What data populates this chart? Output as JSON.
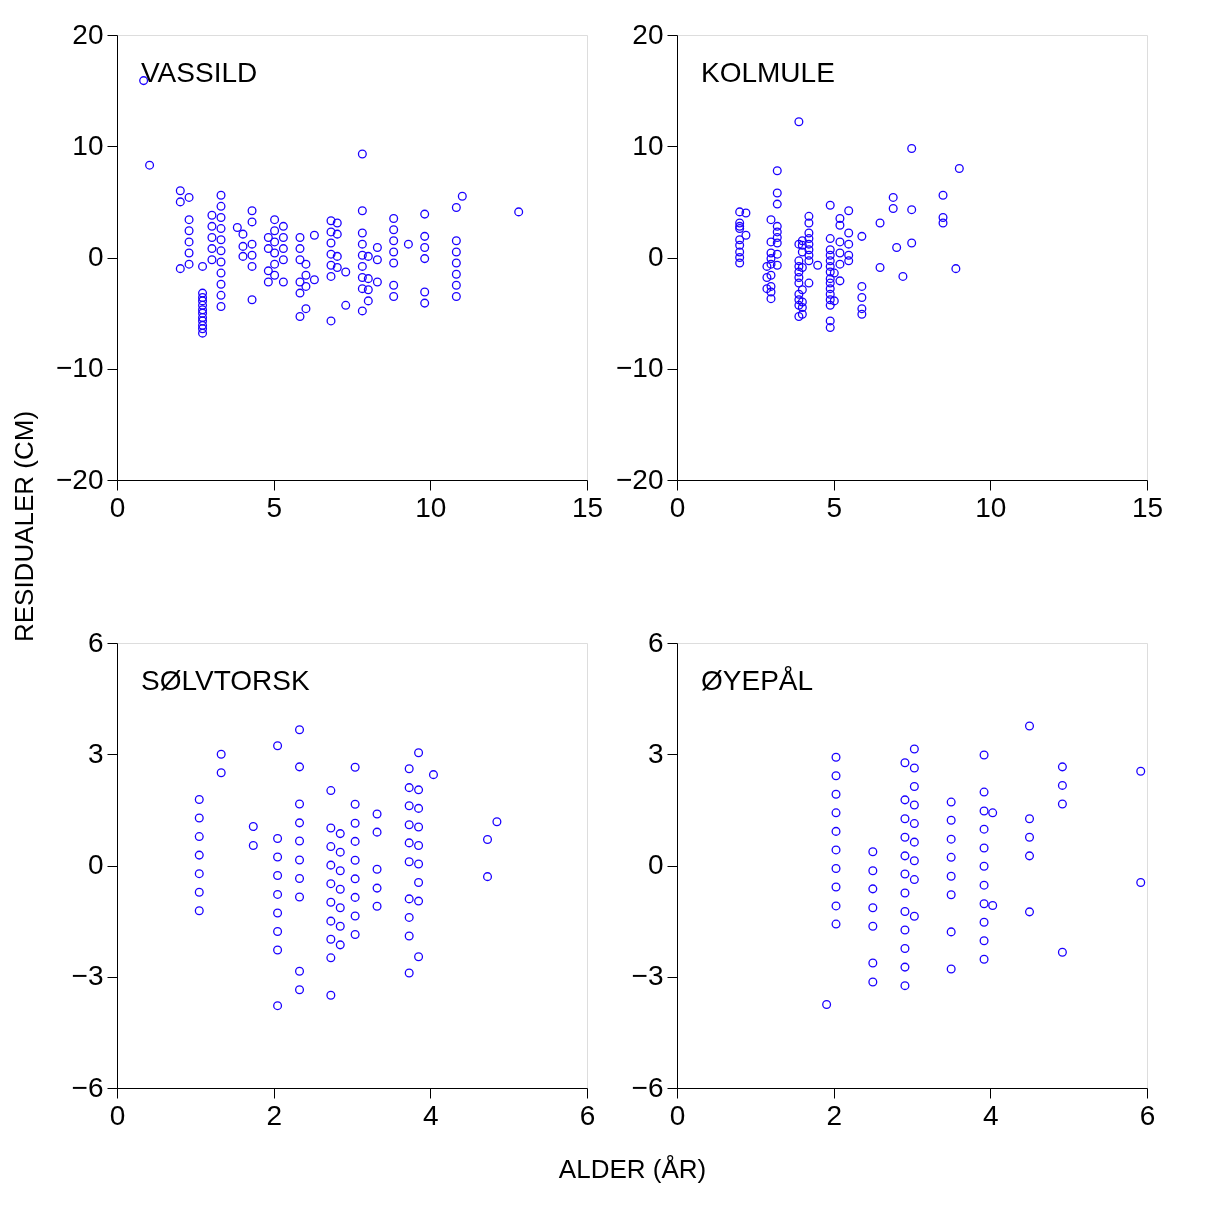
{
  "chart_data": [
    {
      "type": "scatter",
      "title": "VASSILD",
      "ylabel": "RESIDUALER (CM)",
      "marker": "circle",
      "xlim": [
        0,
        15
      ],
      "ylim": [
        -20,
        20
      ],
      "xticks": [
        0,
        5,
        10,
        15
      ],
      "yticks": [
        -20,
        -10,
        0,
        10,
        20
      ],
      "x": [
        0.85,
        1.04,
        2.02,
        2.02,
        2.02,
        2.3,
        2.3,
        2.3,
        2.3,
        2.3,
        2.3,
        2.73,
        2.73,
        2.73,
        2.73,
        2.73,
        2.73,
        2.73,
        2.73,
        2.73,
        2.73,
        2.73,
        2.73,
        3.03,
        3.03,
        3.03,
        3.03,
        3.03,
        3.32,
        3.32,
        3.32,
        3.32,
        3.32,
        3.32,
        3.32,
        3.32,
        3.32,
        3.32,
        3.32,
        3.84,
        4.02,
        4.02,
        4.02,
        4.31,
        4.31,
        4.31,
        4.31,
        4.31,
        4.31,
        4.83,
        4.83,
        4.83,
        4.83,
        5.03,
        5.03,
        5.03,
        5.03,
        5.03,
        5.03,
        5.31,
        5.31,
        5.31,
        5.31,
        5.31,
        5.84,
        5.84,
        5.84,
        5.84,
        5.84,
        5.84,
        6.03,
        6.03,
        6.03,
        6.03,
        6.3,
        6.3,
        6.83,
        6.83,
        6.83,
        6.83,
        6.83,
        6.83,
        6.83,
        7.03,
        7.03,
        7.03,
        7.03,
        7.3,
        7.3,
        7.83,
        7.83,
        7.83,
        7.83,
        7.83,
        7.83,
        7.83,
        7.83,
        7.83,
        8.02,
        8.02,
        8.02,
        8.02,
        8.31,
        8.31,
        8.31,
        8.83,
        8.83,
        8.83,
        8.83,
        8.83,
        8.83,
        8.83,
        9.3,
        9.82,
        9.82,
        9.82,
        9.82,
        9.82,
        9.82,
        10.83,
        10.83,
        10.83,
        10.83,
        10.83,
        10.83,
        10.83,
        11.02,
        12.82
      ],
      "series": [
        {
          "color": "#1a00ff",
          "values": [
            15.9,
            8.3,
            6.0,
            5.0,
            -1.0,
            5.4,
            3.4,
            2.4,
            1.4,
            0.4,
            -0.6,
            -0.8,
            -3.2,
            -3.6,
            -3.9,
            -4.3,
            -4.7,
            -5.0,
            -5.4,
            -5.7,
            -6.1,
            -6.4,
            -6.8,
            3.8,
            2.8,
            1.8,
            0.8,
            -0.2,
            5.6,
            4.6,
            3.6,
            2.6,
            1.6,
            0.6,
            -0.4,
            -1.4,
            -2.4,
            -3.4,
            -4.4,
            2.7,
            2.1,
            1.0,
            0.1,
            4.2,
            3.2,
            1.2,
            0.2,
            -0.8,
            -3.8,
            1.8,
            0.8,
            -1.2,
            -2.2,
            3.4,
            2.4,
            1.4,
            0.4,
            -0.6,
            -1.6,
            2.8,
            1.8,
            0.8,
            -0.2,
            -2.2,
            1.8,
            0.8,
            -0.2,
            -2.2,
            -3.2,
            -5.3,
            -0.6,
            -1.6,
            -2.6,
            -4.6,
            2.0,
            -2.0,
            3.3,
            2.3,
            1.3,
            0.3,
            -0.7,
            -1.7,
            -5.7,
            3.1,
            2.1,
            0.1,
            -0.9,
            -1.3,
            -4.3,
            9.3,
            4.2,
            2.2,
            1.2,
            0.2,
            -0.8,
            -1.8,
            -2.8,
            -4.8,
            0.1,
            -1.9,
            -2.9,
            -3.9,
            0.9,
            -0.2,
            -2.2,
            3.5,
            2.5,
            1.5,
            0.5,
            -0.5,
            -2.5,
            -3.5,
            1.2,
            3.9,
            1.9,
            0.9,
            -0.1,
            -3.1,
            -4.1,
            4.5,
            1.5,
            0.5,
            -0.5,
            -1.5,
            -2.5,
            -3.5,
            5.5,
            4.1
          ]
        }
      ]
    },
    {
      "type": "scatter",
      "title": "KOLMULE",
      "marker": "circle",
      "xlim": [
        0,
        15
      ],
      "ylim": [
        -20,
        20
      ],
      "xticks": [
        0,
        5,
        10,
        15
      ],
      "yticks": [
        -20,
        -10,
        0,
        10,
        20
      ],
      "x": [
        2.0,
        2.0,
        2.0,
        2.0,
        2.0,
        2.0,
        2.0,
        2.0,
        2.0,
        2.2,
        2.2,
        2.87,
        2.87,
        2.87,
        3.0,
        3.0,
        3.0,
        3.0,
        3.0,
        3.0,
        3.0,
        3.0,
        3.0,
        3.2,
        3.2,
        3.2,
        3.2,
        3.2,
        3.2,
        3.2,
        3.2,
        3.2,
        3.89,
        3.89,
        3.89,
        3.89,
        3.89,
        3.89,
        3.89,
        3.89,
        3.89,
        3.89,
        3.89,
        4.0,
        4.0,
        4.0,
        4.0,
        4.0,
        4.0,
        4.0,
        4.0,
        4.21,
        4.21,
        4.21,
        4.21,
        4.21,
        4.21,
        4.21,
        4.21,
        4.21,
        4.49,
        4.89,
        4.89,
        4.89,
        4.89,
        4.89,
        4.89,
        4.89,
        4.89,
        4.89,
        4.89,
        4.89,
        4.89,
        4.89,
        4.89,
        4.89,
        5.02,
        5.02,
        5.2,
        5.2,
        5.2,
        5.2,
        5.2,
        5.2,
        5.48,
        5.48,
        5.48,
        5.48,
        5.48,
        5.9,
        5.9,
        5.9,
        5.9,
        5.9,
        6.48,
        6.48,
        6.9,
        6.9,
        7.01,
        7.21,
        7.49,
        7.49,
        7.49,
        8.49,
        8.49,
        8.49,
        8.9,
        9.01
      ],
      "series": [
        {
          "color": "#1a00ff",
          "values": [
            4.1,
            3.1,
            2.8,
            2.6,
            1.6,
            1.1,
            0.5,
            0.0,
            -0.5,
            4.0,
            2.0,
            -0.8,
            -1.8,
            -2.8,
            3.4,
            1.4,
            0.4,
            -0.1,
            -0.6,
            -1.6,
            -2.6,
            -3.1,
            -3.7,
            7.8,
            5.8,
            4.8,
            2.8,
            2.3,
            1.8,
            1.3,
            0.3,
            -0.7,
            12.2,
            1.2,
            -0.3,
            -0.8,
            -1.3,
            -1.8,
            -2.3,
            -3.3,
            -3.8,
            -4.3,
            -5.3,
            1.5,
            1.1,
            0.5,
            -0.9,
            -2.9,
            -4.0,
            -4.5,
            -5.1,
            3.7,
            3.1,
            2.2,
            1.7,
            1.2,
            0.7,
            0.2,
            -0.3,
            -2.3,
            -0.7,
            4.7,
            1.7,
            0.7,
            0.2,
            -0.3,
            -0.8,
            -1.3,
            -1.9,
            -2.3,
            -2.8,
            -3.3,
            -3.8,
            -4.3,
            -5.7,
            -6.3,
            -1.4,
            -3.9,
            3.5,
            2.9,
            1.4,
            0.4,
            -0.6,
            -2.1,
            4.2,
            2.2,
            1.2,
            0.2,
            -0.3,
            1.9,
            -2.6,
            -3.6,
            -4.6,
            -5.1,
            3.1,
            -0.9,
            5.4,
            4.4,
            0.9,
            -1.7,
            9.8,
            4.3,
            1.3,
            5.6,
            3.6,
            3.1,
            -1.0,
            8.0
          ]
        }
      ]
    },
    {
      "type": "scatter",
      "title": "SØLVTORSK",
      "xlabel": "ALDER (ÅR)",
      "marker": "circle",
      "xlim": [
        0,
        6
      ],
      "ylim": [
        -6,
        6
      ],
      "xticks": [
        0,
        2,
        4,
        6
      ],
      "yticks": [
        -6,
        -3,
        0,
        3,
        6
      ],
      "x": [
        1.05,
        1.05,
        1.05,
        1.05,
        1.05,
        1.05,
        1.05,
        1.33,
        1.33,
        1.74,
        1.74,
        2.05,
        2.05,
        2.05,
        2.05,
        2.05,
        2.05,
        2.05,
        2.05,
        2.05,
        2.33,
        2.33,
        2.33,
        2.33,
        2.33,
        2.33,
        2.33,
        2.33,
        2.33,
        2.33,
        2.73,
        2.73,
        2.73,
        2.73,
        2.73,
        2.73,
        2.73,
        2.73,
        2.73,
        2.73,
        2.85,
        2.85,
        2.85,
        2.85,
        2.85,
        2.85,
        2.85,
        3.04,
        3.04,
        3.04,
        3.04,
        3.04,
        3.04,
        3.04,
        3.04,
        3.04,
        3.32,
        3.32,
        3.32,
        3.32,
        3.32,
        3.73,
        3.73,
        3.73,
        3.73,
        3.73,
        3.73,
        3.73,
        3.73,
        3.73,
        3.73,
        3.85,
        3.85,
        3.85,
        3.85,
        3.85,
        3.85,
        3.85,
        3.85,
        3.85,
        4.04,
        4.73,
        4.73,
        4.85
      ],
      "series": [
        {
          "color": "#1a00ff",
          "values": [
            1.78,
            1.28,
            0.78,
            0.28,
            -0.22,
            -0.72,
            -1.22,
            3.0,
            2.5,
            1.05,
            0.54,
            3.23,
            0.73,
            0.23,
            -0.27,
            -0.78,
            -1.28,
            -1.78,
            -2.28,
            -3.78,
            3.66,
            2.66,
            1.66,
            1.15,
            0.66,
            0.15,
            -0.35,
            -0.85,
            -2.85,
            -3.35,
            2.02,
            1.01,
            0.51,
            0.01,
            -0.49,
            -0.99,
            -1.5,
            -1.99,
            -2.49,
            -3.5,
            0.86,
            0.36,
            -0.14,
            -0.64,
            -1.14,
            -1.64,
            -2.14,
            2.65,
            1.65,
            1.14,
            0.65,
            0.14,
            -0.36,
            -0.86,
            -1.36,
            -1.86,
            1.39,
            0.9,
            -0.1,
            -0.61,
            -1.1,
            2.61,
            2.1,
            1.61,
            1.1,
            0.61,
            0.1,
            -0.9,
            -1.4,
            -1.9,
            -2.9,
            3.04,
            2.04,
            1.54,
            1.04,
            0.54,
            0.04,
            -0.46,
            -0.96,
            -2.46,
            2.45,
            0.7,
            -0.3,
            1.18
          ]
        }
      ]
    },
    {
      "type": "scatter",
      "title": "ØYEPÅL",
      "marker": "circle",
      "xlim": [
        0,
        6
      ],
      "ylim": [
        -6,
        6
      ],
      "xticks": [
        0,
        2,
        4,
        6
      ],
      "yticks": [
        -6,
        -3,
        0,
        3,
        6
      ],
      "x": [
        1.91,
        2.03,
        2.03,
        2.03,
        2.03,
        2.03,
        2.03,
        2.03,
        2.03,
        2.03,
        2.03,
        2.5,
        2.5,
        2.5,
        2.5,
        2.5,
        2.5,
        2.5,
        2.91,
        2.91,
        2.91,
        2.91,
        2.91,
        2.91,
        2.91,
        2.91,
        2.91,
        2.91,
        2.91,
        2.91,
        3.03,
        3.03,
        3.03,
        3.03,
        3.03,
        3.03,
        3.03,
        3.03,
        3.03,
        3.5,
        3.5,
        3.5,
        3.5,
        3.5,
        3.5,
        3.5,
        3.5,
        3.92,
        3.92,
        3.92,
        3.92,
        3.92,
        3.92,
        3.92,
        3.92,
        3.92,
        3.92,
        3.92,
        4.03,
        4.03,
        4.5,
        4.5,
        4.5,
        4.5,
        4.5,
        4.92,
        4.92,
        4.92,
        4.92,
        5.92,
        5.92
      ],
      "series": [
        {
          "color": "#1a00ff",
          "values": [
            -3.75,
            2.92,
            2.42,
            1.92,
            1.42,
            0.92,
            0.42,
            -0.08,
            -0.58,
            -1.09,
            -1.58,
            0.37,
            -0.14,
            -0.63,
            -1.14,
            -1.64,
            -2.63,
            -3.14,
            2.77,
            1.77,
            1.26,
            0.76,
            0.26,
            -0.23,
            -0.74,
            -1.24,
            -1.74,
            -2.24,
            -2.74,
            -3.24,
            3.14,
            2.63,
            2.13,
            1.63,
            1.13,
            0.63,
            0.13,
            -0.38,
            -1.37,
            1.71,
            1.22,
            0.71,
            0.22,
            -0.29,
            -0.79,
            -1.79,
            -2.79,
            2.98,
            1.98,
            1.47,
            0.98,
            0.47,
            -0.02,
            -0.53,
            -1.03,
            -1.53,
            -2.03,
            -2.53,
            1.42,
            -1.08,
            3.76,
            1.26,
            0.76,
            0.26,
            -1.25,
            2.66,
            2.16,
            1.66,
            -2.34,
            2.54,
            -0.46
          ]
        }
      ]
    }
  ]
}
